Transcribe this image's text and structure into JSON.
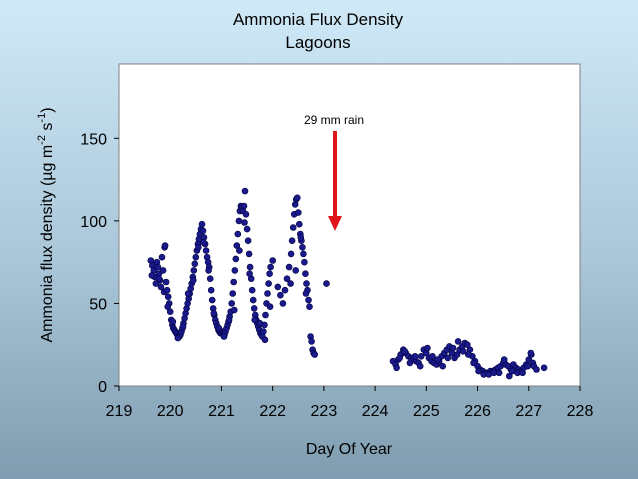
{
  "chart_data": {
    "type": "scatter",
    "title": "Ammonia Flux Density",
    "subtitle": "Lagoons",
    "xlabel": "Day Of Year",
    "ylabel": "Ammonia flux density (μg m⁻² s⁻¹)",
    "xlim": [
      219,
      228
    ],
    "ylim": [
      0,
      195
    ],
    "xticks": [
      "219",
      "220",
      "221",
      "222",
      "223",
      "224",
      "225",
      "226",
      "227",
      "228"
    ],
    "yticks": [
      "0",
      "50",
      "100",
      "150"
    ],
    "grid": false,
    "legend": "none",
    "marker_color": "#1a1a8c",
    "marker_edge": "#000040",
    "annotation": {
      "text": "29 mm rain",
      "x": 223.2,
      "y": 160,
      "arrow_to_y": 95,
      "color": "#e0161c"
    },
    "series": [
      {
        "points": [
          [
            219.62,
            76
          ],
          [
            219.65,
            73
          ],
          [
            219.68,
            70
          ],
          [
            219.7,
            66
          ],
          [
            219.72,
            62
          ],
          [
            219.74,
            75
          ],
          [
            219.76,
            72
          ],
          [
            219.78,
            68
          ],
          [
            219.8,
            64
          ],
          [
            219.82,
            60
          ],
          [
            219.84,
            78
          ],
          [
            219.86,
            70
          ],
          [
            219.88,
            57
          ],
          [
            219.89,
            84
          ],
          [
            219.9,
            85
          ],
          [
            219.92,
            63
          ],
          [
            219.94,
            58
          ],
          [
            219.96,
            54
          ],
          [
            219.98,
            50
          ],
          [
            220.0,
            45
          ],
          [
            220.02,
            40
          ],
          [
            220.04,
            37
          ],
          [
            220.06,
            35
          ],
          [
            220.08,
            34
          ],
          [
            220.1,
            33
          ],
          [
            220.12,
            32
          ],
          [
            220.14,
            31
          ],
          [
            220.16,
            30
          ],
          [
            220.18,
            30
          ],
          [
            220.2,
            31
          ],
          [
            220.22,
            33
          ],
          [
            220.24,
            35
          ],
          [
            220.26,
            38
          ],
          [
            220.28,
            41
          ],
          [
            220.3,
            44
          ],
          [
            220.32,
            47
          ],
          [
            220.34,
            50
          ],
          [
            220.36,
            53
          ],
          [
            220.38,
            56
          ],
          [
            220.4,
            59
          ],
          [
            220.42,
            62
          ],
          [
            220.44,
            66
          ],
          [
            220.46,
            70
          ],
          [
            220.48,
            74
          ],
          [
            220.5,
            78
          ],
          [
            220.52,
            82
          ],
          [
            220.54,
            86
          ],
          [
            220.56,
            89
          ],
          [
            220.58,
            92
          ],
          [
            220.6,
            95
          ],
          [
            220.62,
            98
          ],
          [
            220.64,
            94
          ],
          [
            220.66,
            90
          ],
          [
            220.68,
            86
          ],
          [
            220.7,
            82
          ],
          [
            220.72,
            78
          ],
          [
            220.74,
            75
          ],
          [
            220.76,
            72
          ],
          [
            220.78,
            65
          ],
          [
            220.8,
            58
          ],
          [
            220.82,
            52
          ],
          [
            220.84,
            47
          ],
          [
            220.86,
            43
          ],
          [
            220.88,
            40
          ],
          [
            220.9,
            38
          ],
          [
            220.92,
            36
          ],
          [
            220.94,
            34
          ],
          [
            220.96,
            33
          ],
          [
            220.98,
            32
          ],
          [
            221.0,
            32
          ],
          [
            221.02,
            33
          ],
          [
            221.04,
            32
          ],
          [
            221.06,
            31
          ],
          [
            221.08,
            33
          ],
          [
            221.1,
            35
          ],
          [
            221.12,
            37
          ],
          [
            221.14,
            39
          ],
          [
            221.16,
            42
          ],
          [
            221.18,
            45
          ],
          [
            221.2,
            50
          ],
          [
            221.22,
            56
          ],
          [
            221.24,
            63
          ],
          [
            221.26,
            70
          ],
          [
            221.28,
            77
          ],
          [
            221.3,
            85
          ],
          [
            221.32,
            92
          ],
          [
            221.34,
            100
          ],
          [
            221.36,
            106
          ],
          [
            221.38,
            109
          ],
          [
            221.4,
            108
          ],
          [
            221.42,
            106
          ],
          [
            221.44,
            109
          ],
          [
            221.46,
            118
          ],
          [
            221.48,
            104
          ],
          [
            221.5,
            95
          ],
          [
            221.52,
            88
          ],
          [
            221.54,
            80
          ],
          [
            221.56,
            72
          ],
          [
            221.58,
            65
          ],
          [
            221.6,
            58
          ],
          [
            221.62,
            52
          ],
          [
            221.64,
            47
          ],
          [
            221.66,
            43
          ],
          [
            221.68,
            40
          ],
          [
            221.7,
            38
          ],
          [
            221.72,
            36
          ],
          [
            221.74,
            34
          ],
          [
            221.76,
            32
          ],
          [
            221.78,
            31
          ],
          [
            221.8,
            30
          ],
          [
            221.82,
            33
          ],
          [
            221.84,
            37
          ],
          [
            221.86,
            43
          ],
          [
            221.88,
            50
          ],
          [
            221.9,
            56
          ],
          [
            221.92,
            62
          ],
          [
            221.94,
            68
          ],
          [
            221.96,
            72
          ],
          [
            222.0,
            76
          ],
          [
            222.1,
            60
          ],
          [
            222.15,
            55
          ],
          [
            222.2,
            50
          ],
          [
            222.24,
            58
          ],
          [
            222.28,
            65
          ],
          [
            222.32,
            72
          ],
          [
            222.36,
            80
          ],
          [
            222.38,
            88
          ],
          [
            222.4,
            96
          ],
          [
            222.42,
            104
          ],
          [
            222.44,
            110
          ],
          [
            222.46,
            113
          ],
          [
            222.48,
            114
          ],
          [
            222.5,
            105
          ],
          [
            222.52,
            98
          ],
          [
            222.54,
            92
          ],
          [
            222.56,
            88
          ],
          [
            222.58,
            84
          ],
          [
            222.6,
            80
          ],
          [
            222.62,
            75
          ],
          [
            222.64,
            68
          ],
          [
            222.66,
            62
          ],
          [
            222.68,
            58
          ],
          [
            222.7,
            52
          ],
          [
            222.72,
            48
          ],
          [
            222.74,
            30
          ],
          [
            222.76,
            27
          ],
          [
            222.78,
            22
          ],
          [
            222.8,
            20
          ],
          [
            222.82,
            19
          ],
          [
            223.05,
            62
          ],
          [
            224.35,
            15
          ],
          [
            224.4,
            13
          ],
          [
            224.45,
            16
          ],
          [
            224.5,
            19
          ],
          [
            224.55,
            22
          ],
          [
            224.6,
            20
          ],
          [
            224.65,
            18
          ],
          [
            224.7,
            17
          ],
          [
            224.75,
            16
          ],
          [
            224.8,
            15
          ],
          [
            224.85,
            14
          ],
          [
            224.9,
            18
          ],
          [
            224.95,
            22
          ],
          [
            225.0,
            20
          ],
          [
            225.05,
            17
          ],
          [
            225.1,
            15
          ],
          [
            225.15,
            14
          ],
          [
            225.2,
            13
          ],
          [
            225.25,
            15
          ],
          [
            225.3,
            18
          ],
          [
            225.35,
            20
          ],
          [
            225.4,
            22
          ],
          [
            225.45,
            24
          ],
          [
            225.5,
            20
          ],
          [
            225.55,
            17
          ],
          [
            225.6,
            19
          ],
          [
            225.65,
            22
          ],
          [
            225.7,
            24
          ],
          [
            225.75,
            26
          ],
          [
            225.8,
            25
          ],
          [
            225.85,
            22
          ],
          [
            225.9,
            18
          ],
          [
            225.95,
            15
          ],
          [
            226.0,
            12
          ],
          [
            226.05,
            10
          ],
          [
            226.1,
            9
          ],
          [
            226.15,
            8
          ],
          [
            226.2,
            8
          ],
          [
            226.25,
            9
          ],
          [
            226.3,
            9
          ],
          [
            226.35,
            10
          ],
          [
            226.4,
            11
          ],
          [
            226.45,
            12
          ],
          [
            226.5,
            14
          ],
          [
            226.55,
            13
          ],
          [
            226.6,
            12
          ],
          [
            226.62,
            6
          ],
          [
            226.65,
            10
          ],
          [
            226.7,
            13
          ],
          [
            226.75,
            11
          ],
          [
            226.8,
            10
          ],
          [
            226.85,
            9
          ],
          [
            226.9,
            11
          ],
          [
            226.95,
            13
          ],
          [
            227.0,
            16
          ],
          [
            227.05,
            19
          ],
          [
            227.08,
            14
          ],
          [
            227.1,
            12
          ],
          [
            227.15,
            10
          ],
          [
            227.3,
            11
          ],
          [
            224.42,
            11
          ],
          [
            224.48,
            17
          ],
          [
            224.58,
            21
          ],
          [
            224.68,
            14
          ],
          [
            224.78,
            18
          ],
          [
            224.88,
            12
          ],
          [
            225.02,
            23
          ],
          [
            225.12,
            18
          ],
          [
            225.22,
            16
          ],
          [
            225.32,
            12
          ],
          [
            225.42,
            17
          ],
          [
            225.52,
            23
          ],
          [
            225.62,
            27
          ],
          [
            225.72,
            21
          ],
          [
            225.82,
            19
          ],
          [
            225.92,
            14
          ],
          [
            226.02,
            9
          ],
          [
            226.12,
            7
          ],
          [
            226.22,
            7
          ],
          [
            226.32,
            8
          ],
          [
            226.42,
            8
          ],
          [
            226.52,
            16
          ],
          [
            226.68,
            9
          ],
          [
            226.78,
            8
          ],
          [
            226.88,
            8
          ],
          [
            226.98,
            12
          ],
          [
            227.04,
            20
          ],
          [
            219.64,
            67
          ],
          [
            219.78,
            65
          ],
          [
            219.95,
            48
          ],
          [
            220.05,
            39
          ],
          [
            220.15,
            29
          ],
          [
            220.25,
            36
          ],
          [
            220.35,
            56
          ],
          [
            220.45,
            64
          ],
          [
            220.55,
            84
          ],
          [
            220.65,
            87
          ],
          [
            220.75,
            70
          ],
          [
            220.85,
            44
          ],
          [
            220.95,
            35
          ],
          [
            221.05,
            30
          ],
          [
            221.15,
            40
          ],
          [
            221.25,
            46
          ],
          [
            221.35,
            82
          ],
          [
            221.45,
            99
          ],
          [
            221.55,
            68
          ],
          [
            221.65,
            40
          ],
          [
            221.75,
            38
          ],
          [
            221.85,
            28
          ],
          [
            221.95,
            48
          ],
          [
            222.35,
            62
          ],
          [
            222.45,
            70
          ],
          [
            222.55,
            90
          ],
          [
            222.65,
            56
          ]
        ]
      }
    ]
  }
}
